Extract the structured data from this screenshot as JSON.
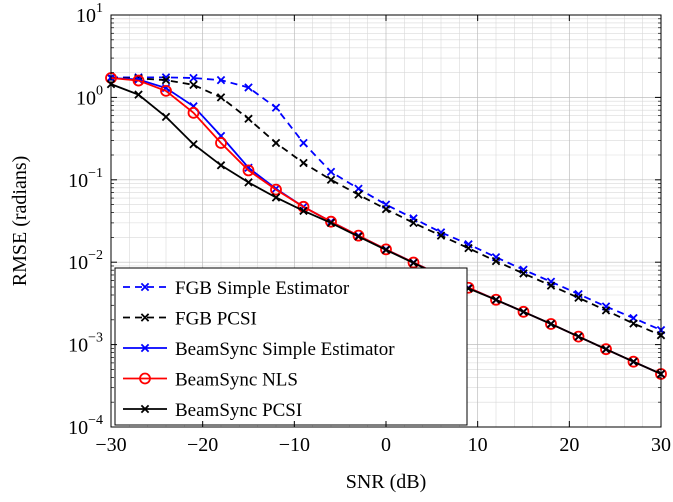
{
  "chart_data": {
    "type": "line",
    "title": "",
    "xlabel": "SNR (dB)",
    "ylabel": "RMSE (radians)",
    "xlim": [
      -30,
      30
    ],
    "ylim": [
      0.0001,
      10
    ],
    "yscale": "log",
    "grid": true,
    "legend_position": "bottom-left",
    "x_ticks": [
      -30,
      -20,
      -10,
      0,
      10,
      20,
      30
    ],
    "x_tick_labels": [
      "−30",
      "−20",
      "−10",
      "0",
      "10",
      "20",
      "30"
    ],
    "y_ticks": [
      {
        "value": 10,
        "base": "10",
        "exp": "1"
      },
      {
        "value": 1,
        "base": "10",
        "exp": "0"
      },
      {
        "value": 0.1,
        "base": "10",
        "exp": "−1"
      },
      {
        "value": 0.01,
        "base": "10",
        "exp": "−2"
      },
      {
        "value": 0.001,
        "base": "10",
        "exp": "−3"
      },
      {
        "value": 0.0001,
        "base": "10",
        "exp": "−4"
      }
    ],
    "x": [
      -30,
      -27,
      -24,
      -21,
      -18,
      -15,
      -12,
      -9,
      -6,
      -3,
      0,
      3,
      6,
      9,
      12,
      15,
      18,
      21,
      24,
      27,
      30
    ],
    "series": [
      {
        "name": "FGB Simple Estimator",
        "color": "#0000ff",
        "dash": "dashed",
        "marker": "x",
        "values": [
          1.75,
          1.75,
          1.75,
          1.72,
          1.62,
          1.32,
          0.75,
          0.28,
          0.125,
          0.078,
          0.05,
          0.034,
          0.023,
          0.0165,
          0.0115,
          0.0081,
          0.0058,
          0.0041,
          0.0029,
          0.0021,
          0.0015
        ]
      },
      {
        "name": "FGB PCSI",
        "color": "#000000",
        "dash": "dashed",
        "marker": "x",
        "values": [
          1.72,
          1.7,
          1.62,
          1.42,
          1.0,
          0.55,
          0.28,
          0.16,
          0.1,
          0.066,
          0.044,
          0.03,
          0.021,
          0.0148,
          0.0103,
          0.0073,
          0.0052,
          0.0037,
          0.0026,
          0.0018,
          0.0013
        ]
      },
      {
        "name": "BeamSync Simple Estimator",
        "color": "#0000ff",
        "dash": "solid",
        "marker": "x",
        "values": [
          1.72,
          1.65,
          1.3,
          0.78,
          0.34,
          0.14,
          0.078,
          0.047,
          0.031,
          0.021,
          0.0143,
          0.0099,
          0.0069,
          0.0049,
          0.0035,
          0.0025,
          0.00178,
          0.00125,
          0.00088,
          0.00062,
          0.00044
        ]
      },
      {
        "name": "BeamSync NLS",
        "color": "#ff0000",
        "dash": "solid",
        "marker": "o",
        "values": [
          1.72,
          1.6,
          1.2,
          0.65,
          0.28,
          0.13,
          0.076,
          0.047,
          0.031,
          0.021,
          0.0143,
          0.0099,
          0.0069,
          0.0049,
          0.0035,
          0.0025,
          0.00178,
          0.00125,
          0.00088,
          0.00062,
          0.00044
        ]
      },
      {
        "name": "BeamSync PCSI",
        "color": "#000000",
        "dash": "solid",
        "marker": "x",
        "values": [
          1.45,
          1.08,
          0.58,
          0.27,
          0.15,
          0.093,
          0.061,
          0.042,
          0.03,
          0.0205,
          0.0141,
          0.0098,
          0.0068,
          0.0048,
          0.0035,
          0.0025,
          0.00178,
          0.00125,
          0.00088,
          0.00062,
          0.00044
        ]
      }
    ]
  }
}
